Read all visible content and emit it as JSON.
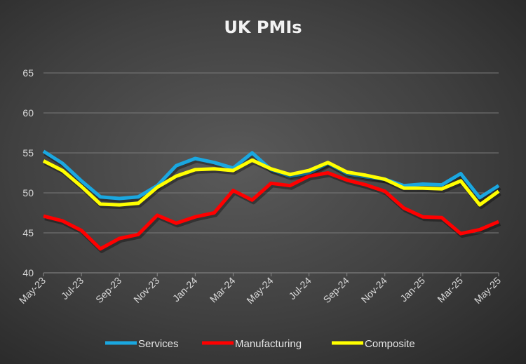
{
  "chart_data": {
    "type": "line",
    "title": "UK PMIs",
    "x": [
      "May-23",
      "Jun-23",
      "Jul-23",
      "Aug-23",
      "Sep-23",
      "Oct-23",
      "Nov-23",
      "Dec-23",
      "Jan-24",
      "Feb-24",
      "Mar-24",
      "Apr-24",
      "May-24",
      "Jun-24",
      "Jul-24",
      "Aug-24",
      "Sep-24",
      "Oct-24",
      "Nov-24",
      "Dec-24",
      "Jan-25",
      "Feb-25",
      "Mar-25",
      "Apr-25",
      "May-25"
    ],
    "x_tick_labels": [
      "May-23",
      "Jul-23",
      "Sep-23",
      "Nov-23",
      "Jan-24",
      "Mar-24",
      "May-24",
      "Jul-24",
      "Sep-24",
      "Nov-24",
      "Jan-25",
      "Mar-25",
      "May-25"
    ],
    "ylim": [
      40,
      65
    ],
    "y_ticks": [
      40,
      45,
      50,
      55,
      60,
      65
    ],
    "grid": true,
    "legend_position": "bottom",
    "series": [
      {
        "name": "Services",
        "color": "#1aa7e0",
        "values": [
          55.2,
          53.7,
          51.5,
          49.5,
          49.3,
          49.5,
          50.9,
          53.4,
          54.3,
          53.8,
          53.1,
          55.0,
          52.9,
          52.1,
          52.5,
          53.7,
          52.4,
          52.0,
          51.7,
          50.9,
          51.1,
          51.0,
          52.4,
          49.4,
          50.9
        ]
      },
      {
        "name": "Manufacturing",
        "color": "#ff0000",
        "values": [
          47.1,
          46.5,
          45.3,
          43.0,
          44.3,
          44.8,
          47.2,
          46.2,
          47.0,
          47.5,
          50.3,
          49.1,
          51.2,
          50.9,
          52.1,
          52.5,
          51.6,
          51.0,
          50.2,
          48.1,
          47.0,
          46.9,
          44.9,
          45.4,
          46.4
        ]
      },
      {
        "name": "Composite",
        "color": "#ffff00",
        "values": [
          54.0,
          52.8,
          50.8,
          48.6,
          48.5,
          48.7,
          50.7,
          52.1,
          52.9,
          53.0,
          52.8,
          54.1,
          53.0,
          52.3,
          52.8,
          53.8,
          52.6,
          52.2,
          51.7,
          50.6,
          50.6,
          50.5,
          51.5,
          48.5,
          50.2
        ]
      }
    ]
  }
}
